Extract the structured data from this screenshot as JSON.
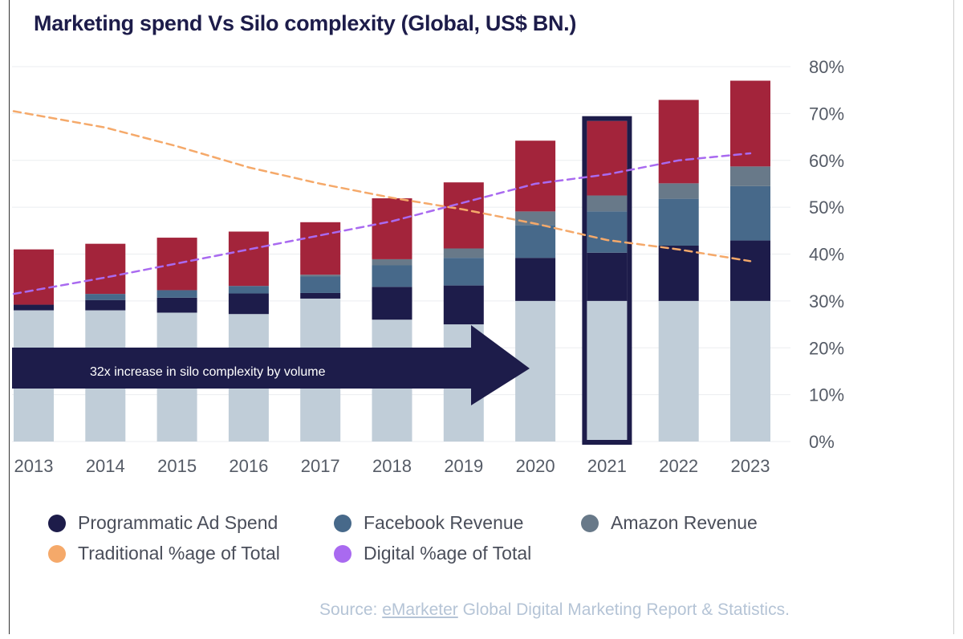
{
  "title": "Marketing spend Vs Silo complexity (Global, US$ BN.)",
  "arrow_text": "32x increase in silo complexity by volume",
  "source": {
    "prefix": "Source: ",
    "link": "eMarketer",
    "suffix": " Global Digital Marketing Report & Statistics."
  },
  "colors": {
    "base": "#c0cdd8",
    "programmatic": "#1d1c4a",
    "facebook": "#47698a",
    "amazon": "#687989",
    "other": "#a3243b",
    "traditional": "#f5a96a",
    "digital": "#a96af0",
    "arrow": "#1d1c4a"
  },
  "legend": [
    {
      "label": "Programmatic Ad Spend",
      "color": "#1d1c4a"
    },
    {
      "label": "Facebook Revenue",
      "color": "#47698a"
    },
    {
      "label": "Amazon Revenue",
      "color": "#687989"
    },
    {
      "label": "Traditional %age of Total",
      "color": "#f5a96a"
    },
    {
      "label": "Digital %age of Total",
      "color": "#a96af0"
    }
  ],
  "chart_data": {
    "type": "bar",
    "stacked": true,
    "categories": [
      "2013",
      "2014",
      "2015",
      "2016",
      "2017",
      "2018",
      "2019",
      "2020",
      "2021",
      "2022",
      "2023"
    ],
    "highlighted_category": "2021",
    "series": [
      {
        "values": [
          28,
          28,
          27.5,
          27.2,
          30.5,
          26,
          25,
          30,
          30,
          30,
          30
        ]
      },
      {
        "name": "Programmatic Ad Spend",
        "values": [
          1.2,
          2.2,
          3.2,
          4.4,
          1.2,
          7,
          8.3,
          9.2,
          10.3,
          11.8,
          12.9
        ]
      },
      {
        "name": "Facebook Revenue",
        "values": [
          0,
          1.3,
          1.6,
          1.6,
          3.5,
          4.6,
          5.9,
          7,
          8.8,
          10,
          11.6
        ]
      },
      {
        "name": "Amazon Revenue",
        "values": [
          0,
          0,
          0,
          0,
          0.4,
          1.3,
          2,
          2.9,
          3.4,
          3.3,
          4.2
        ]
      },
      {
        "values": [
          11.8,
          10.7,
          11.2,
          11.6,
          11.2,
          13,
          14.1,
          15.1,
          15.9,
          17.8,
          18.3
        ]
      }
    ],
    "lines": [
      {
        "name": "Traditional %age of Total",
        "values": [
          70.5,
          67,
          63,
          58.5,
          55,
          52,
          49.5,
          46.5,
          43,
          41,
          38.5
        ]
      },
      {
        "name": "Digital %age of Total",
        "values": [
          31.5,
          35,
          38,
          41,
          44,
          47,
          51,
          55,
          57,
          60,
          61.5
        ]
      }
    ],
    "ylim": [
      0,
      80
    ],
    "y_ticks": [
      "0%",
      "10%",
      "20%",
      "30%",
      "40%",
      "50%",
      "60%",
      "70%",
      "80%"
    ],
    "y_axis_position": "right",
    "grid": true,
    "legend_position": "bottom"
  }
}
